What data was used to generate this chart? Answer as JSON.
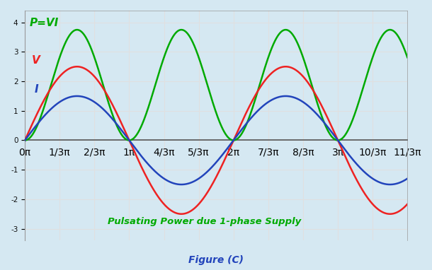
{
  "subtitle": "Pulsating Power due 1-phase Supply",
  "figure_label": "Figure (C)",
  "bg_color": "#d5e8f2",
  "grid_color": "#e0e0e0",
  "V_color": "#ee2222",
  "I_color": "#2244bb",
  "P_color": "#00aa00",
  "V_amplitude": 2.5,
  "I_amplitude": 1.5,
  "ylim": [
    -3.4,
    4.4
  ],
  "yticks": [
    -3,
    -2,
    -1,
    0,
    1,
    2,
    3,
    4
  ],
  "xtick_labels": [
    "0π",
    "1/3π",
    "2/3π",
    "1π",
    "4/3π",
    "5/3π",
    "2π",
    "7/3π",
    "8/3π",
    "3π",
    "10/3π",
    "11/3π"
  ],
  "label_P": "P=VI",
  "label_V": "V",
  "label_I": "I",
  "line_width": 1.8
}
